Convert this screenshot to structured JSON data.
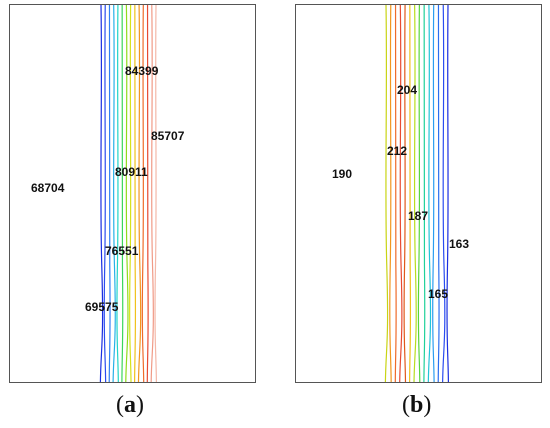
{
  "panels": [
    {
      "id": "a",
      "caption_letter": "a",
      "labels": [
        "84399",
        "85707",
        "80911",
        "68704",
        "76551",
        "69575"
      ],
      "contour_colors": [
        "#1a2ee0",
        "#2a4cf0",
        "#2f7ff5",
        "#27b0e8",
        "#20d4c8",
        "#3ad65a",
        "#8fdc1e",
        "#d6e21a",
        "#f0c21c",
        "#f2961e",
        "#ef6b2a",
        "#e84a32",
        "#f09a86",
        "#f4b8a8"
      ]
    },
    {
      "id": "b",
      "caption_letter": "b",
      "labels": [
        "204",
        "212",
        "190",
        "187",
        "163",
        "165"
      ],
      "contour_colors": [
        "#c9d414",
        "#f2961e",
        "#ef6b2a",
        "#e84a32",
        "#e0581a",
        "#f0c21c",
        "#b9dd1e",
        "#5ad63a",
        "#1fd19a",
        "#22c4d8",
        "#2a9df0",
        "#2a6ef0",
        "#2a4cf0",
        "#1a2ee0"
      ]
    }
  ]
}
